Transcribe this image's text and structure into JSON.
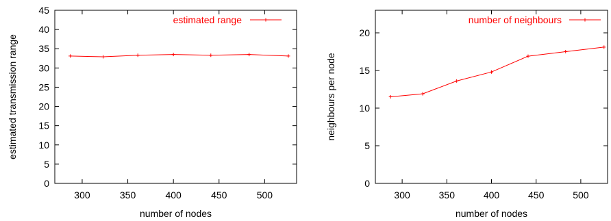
{
  "chart_data": [
    {
      "type": "line",
      "xlabel": "number of nodes",
      "ylabel": "estimated transmission range",
      "xlim": [
        270,
        535
      ],
      "ylim": [
        0,
        45
      ],
      "xticks": [
        300,
        350,
        400,
        450,
        500
      ],
      "yticks": [
        0,
        5,
        10,
        15,
        20,
        25,
        30,
        35,
        40,
        45
      ],
      "grid": false,
      "legend_position": "top-right",
      "series": [
        {
          "name": "estimated range",
          "color": "#ff0000",
          "marker": "plus",
          "x": [
            287,
            323,
            361,
            400,
            441,
            483,
            526
          ],
          "y": [
            33.1,
            32.9,
            33.3,
            33.5,
            33.3,
            33.5,
            33.1
          ]
        }
      ]
    },
    {
      "type": "line",
      "xlabel": "number of nodes",
      "ylabel": "neighbours per node",
      "xlim": [
        270,
        530
      ],
      "ylim": [
        0,
        23
      ],
      "xticks": [
        300,
        350,
        400,
        450,
        500
      ],
      "yticks": [
        0,
        5,
        10,
        15,
        20
      ],
      "grid": false,
      "legend_position": "top-right",
      "series": [
        {
          "name": "number of neighbours",
          "color": "#ff0000",
          "marker": "plus",
          "x": [
            287,
            323,
            361,
            400,
            441,
            483,
            526
          ],
          "y": [
            11.5,
            11.9,
            13.6,
            14.8,
            16.9,
            17.5,
            18.1
          ]
        }
      ]
    }
  ]
}
